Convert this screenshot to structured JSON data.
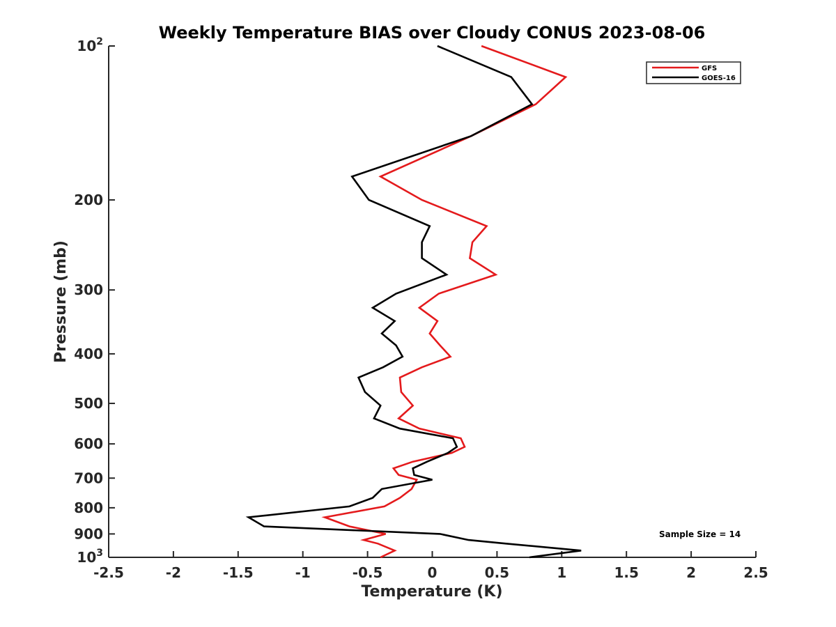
{
  "chart_data": {
    "type": "line",
    "title": "Weekly Temperature BIAS over Cloudy CONUS 2023-08-06",
    "xlabel": "Temperature (K)",
    "ylabel": "Pressure (mb)",
    "xlim": [
      -2.5,
      2.5
    ],
    "ylim": [
      1000,
      100
    ],
    "y_scale": "log",
    "y_reversed": true,
    "grid": false,
    "legend_position": "top-right",
    "x_ticks": [
      "-2.5",
      "-2",
      "-1.5",
      "-1",
      "-0.5",
      "0",
      "0.5",
      "1",
      "1.5",
      "2",
      "2.5"
    ],
    "y_ticks": [
      {
        "value": 100,
        "base": "10",
        "exp": "2"
      },
      {
        "value": 200,
        "label": "200"
      },
      {
        "value": 300,
        "label": "300"
      },
      {
        "value": 400,
        "label": "400"
      },
      {
        "value": 500,
        "label": "500"
      },
      {
        "value": 600,
        "label": "600"
      },
      {
        "value": 700,
        "label": "700"
      },
      {
        "value": 800,
        "label": "800"
      },
      {
        "value": 900,
        "label": "900"
      },
      {
        "value": 1000,
        "base": "10",
        "exp": "3"
      }
    ],
    "series": [
      {
        "name": "GFS",
        "color": "#e41a1c",
        "points": [
          [
            0.38,
            100
          ],
          [
            1.03,
            115
          ],
          [
            0.8,
            130
          ],
          [
            0.3,
            150
          ],
          [
            -0.4,
            180
          ],
          [
            -0.08,
            200
          ],
          [
            0.42,
            225
          ],
          [
            0.31,
            242
          ],
          [
            0.29,
            260
          ],
          [
            0.49,
            280
          ],
          [
            0.05,
            305
          ],
          [
            -0.1,
            325
          ],
          [
            0.04,
            345
          ],
          [
            -0.02,
            365
          ],
          [
            0.06,
            385
          ],
          [
            0.14,
            405
          ],
          [
            -0.08,
            425
          ],
          [
            -0.25,
            445
          ],
          [
            -0.24,
            475
          ],
          [
            -0.15,
            505
          ],
          [
            -0.26,
            535
          ],
          [
            -0.1,
            560
          ],
          [
            0.22,
            585
          ],
          [
            0.25,
            608
          ],
          [
            0.15,
            625
          ],
          [
            -0.15,
            650
          ],
          [
            -0.3,
            670
          ],
          [
            -0.26,
            690
          ],
          [
            -0.12,
            705
          ],
          [
            -0.16,
            735
          ],
          [
            -0.25,
            765
          ],
          [
            -0.37,
            795
          ],
          [
            -0.83,
            835
          ],
          [
            -0.64,
            870
          ],
          [
            -0.36,
            900
          ],
          [
            -0.53,
            925
          ],
          [
            -0.42,
            940
          ],
          [
            -0.29,
            970
          ],
          [
            -0.4,
            1000
          ]
        ]
      },
      {
        "name": "GOES-16",
        "color": "#000000",
        "points": [
          [
            0.04,
            100
          ],
          [
            0.61,
            115
          ],
          [
            0.77,
            130
          ],
          [
            0.3,
            150
          ],
          [
            -0.62,
            180
          ],
          [
            -0.49,
            200
          ],
          [
            -0.02,
            225
          ],
          [
            -0.08,
            242
          ],
          [
            -0.08,
            260
          ],
          [
            0.11,
            280
          ],
          [
            -0.28,
            305
          ],
          [
            -0.46,
            325
          ],
          [
            -0.29,
            345
          ],
          [
            -0.39,
            365
          ],
          [
            -0.28,
            385
          ],
          [
            -0.23,
            405
          ],
          [
            -0.38,
            425
          ],
          [
            -0.57,
            445
          ],
          [
            -0.52,
            475
          ],
          [
            -0.4,
            505
          ],
          [
            -0.45,
            535
          ],
          [
            -0.25,
            560
          ],
          [
            0.16,
            585
          ],
          [
            0.19,
            608
          ],
          [
            0.12,
            625
          ],
          [
            -0.04,
            650
          ],
          [
            -0.15,
            670
          ],
          [
            -0.14,
            690
          ],
          [
            0.0,
            705
          ],
          [
            -0.39,
            735
          ],
          [
            -0.46,
            765
          ],
          [
            -0.64,
            795
          ],
          [
            -1.42,
            835
          ],
          [
            -1.3,
            870
          ],
          [
            0.06,
            900
          ],
          [
            0.28,
            925
          ],
          [
            0.57,
            940
          ],
          [
            1.15,
            970
          ],
          [
            0.75,
            1000
          ]
        ]
      }
    ],
    "annotation": "Sample Size = 14"
  }
}
